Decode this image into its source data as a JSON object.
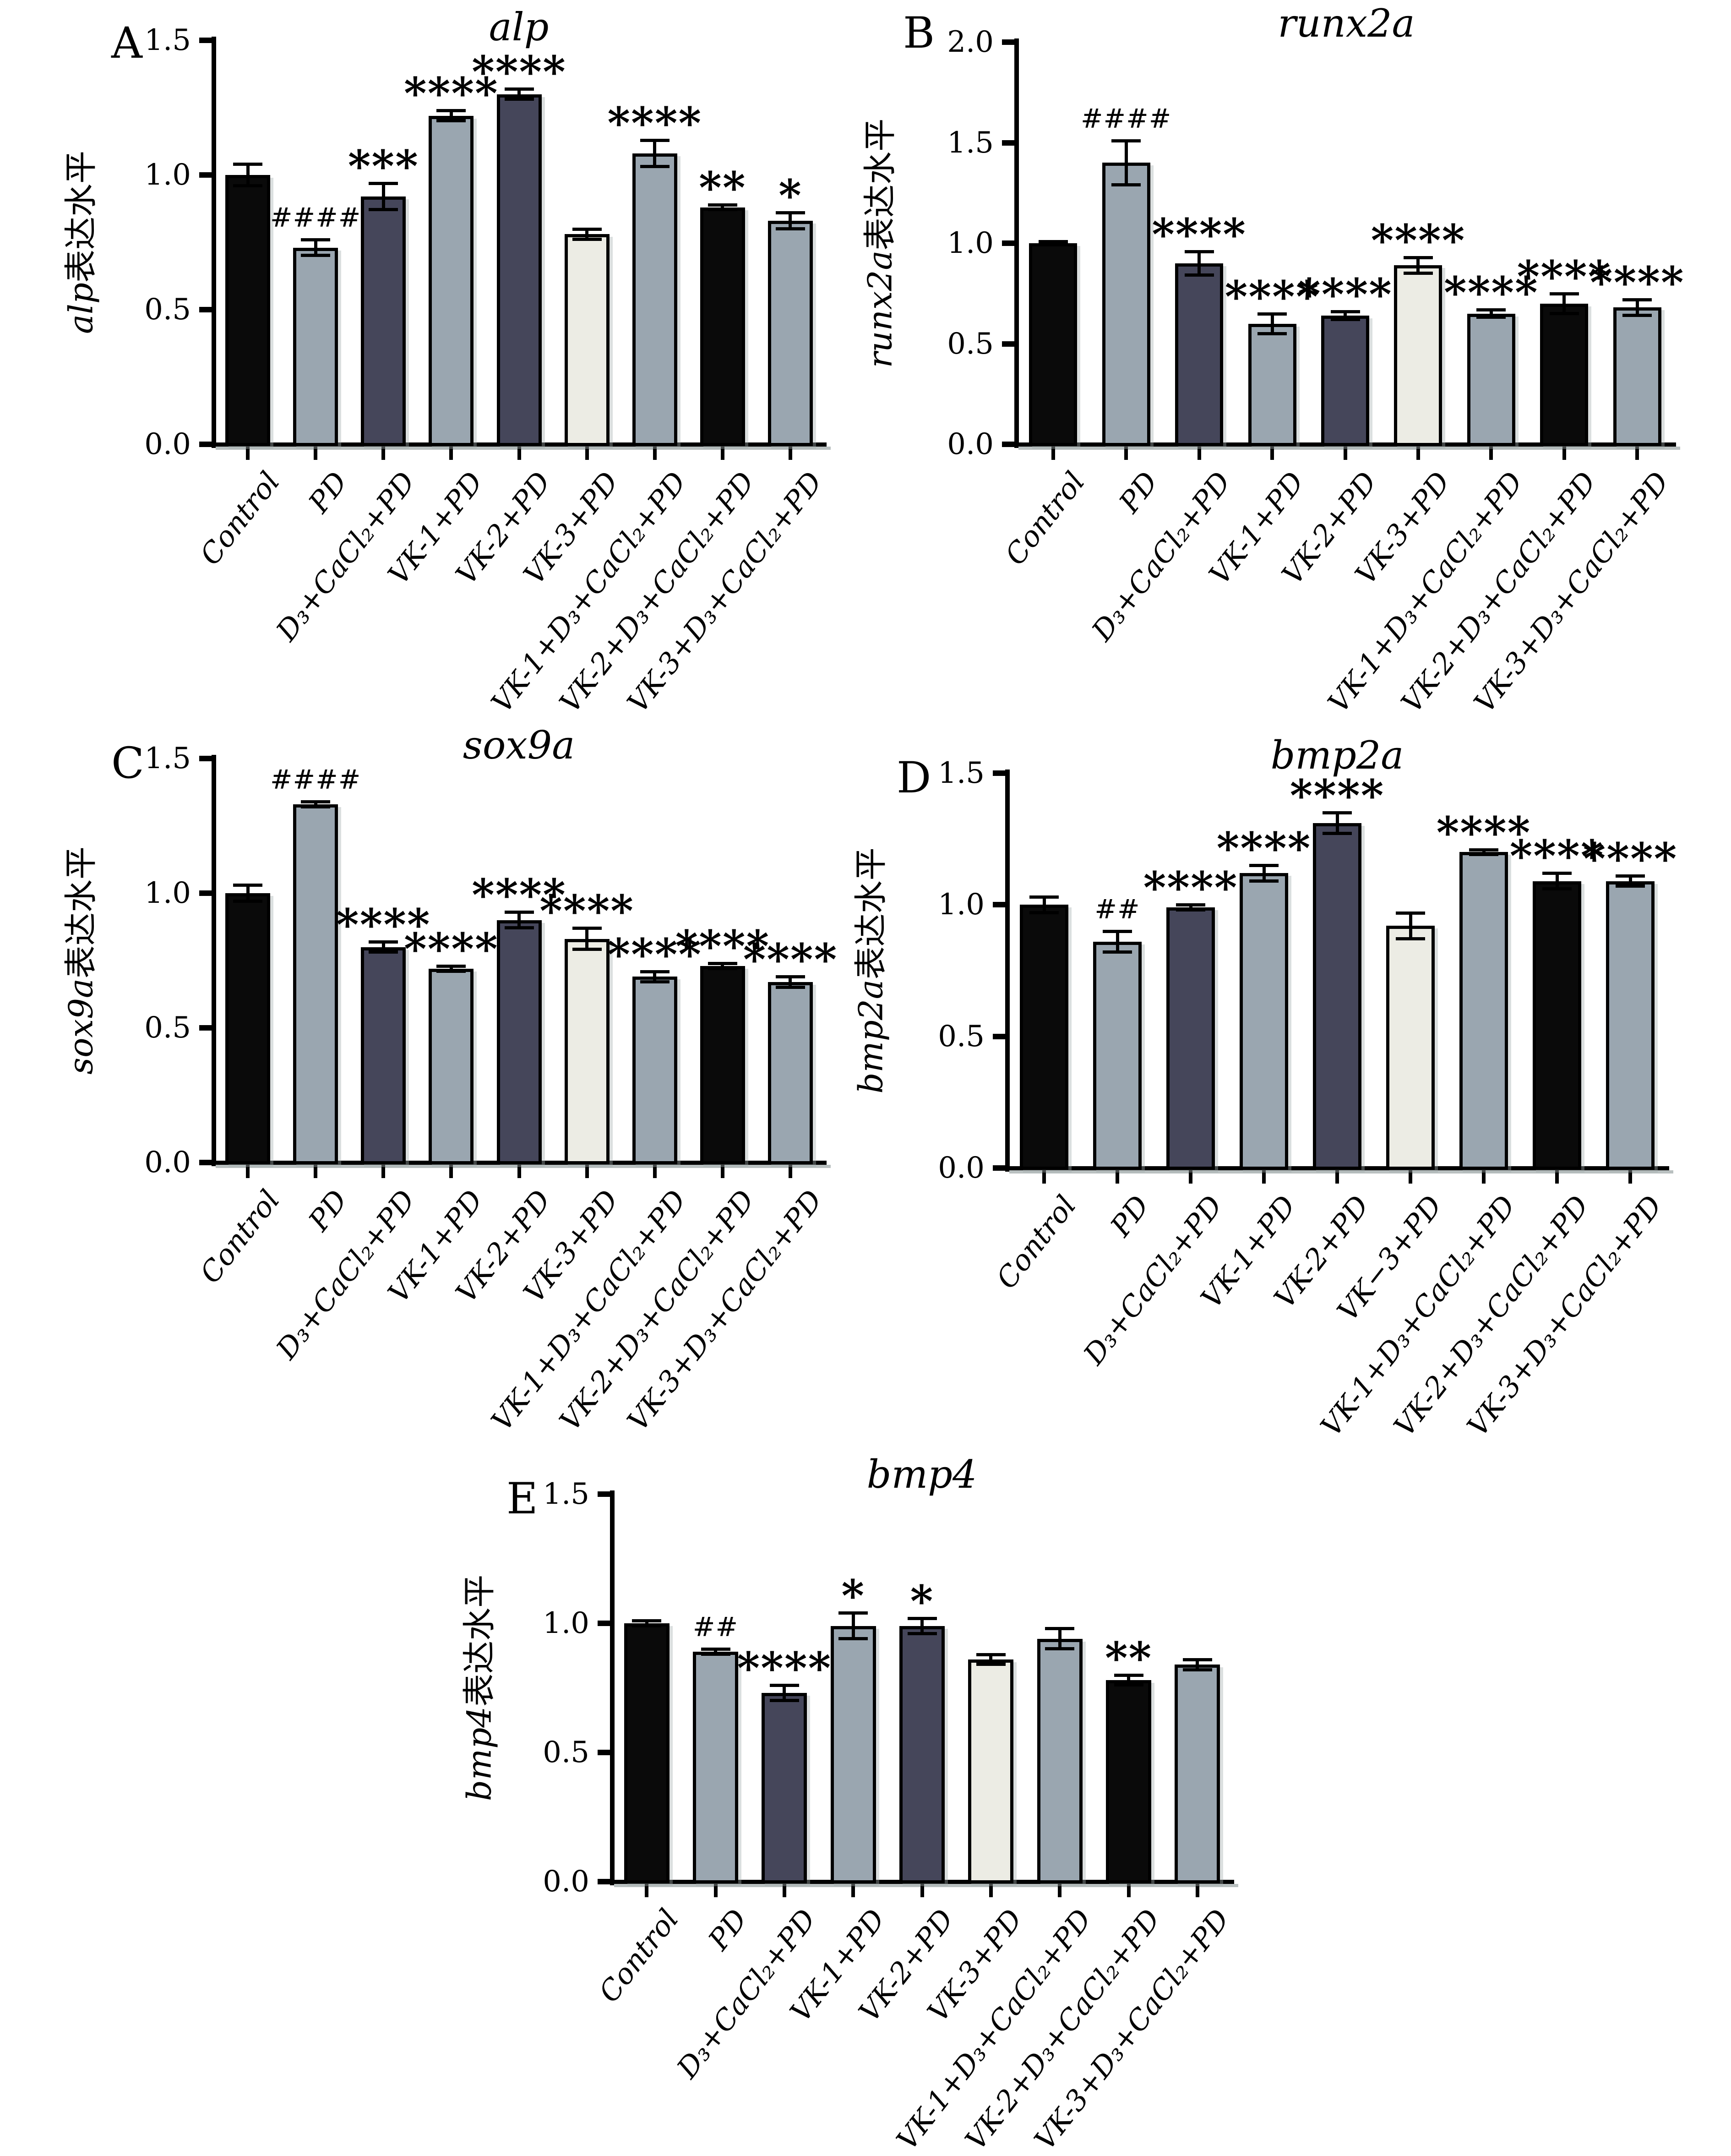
{
  "figure": {
    "background": "#ffffff",
    "colors": {
      "black": "#0a0a0a",
      "gray": "#9aa6b0",
      "slate": "#45465a",
      "cream": "#ecece4",
      "axis": "#000000",
      "axis_shadow": "#b9c0c0"
    },
    "panel_letters": [
      "A",
      "B",
      "C",
      "D",
      "E"
    ]
  },
  "chart_data": [
    {
      "type": "bar",
      "panel": "A",
      "title": "alp",
      "ylabel": "alp表达水平",
      "ylabel_gene": "alp",
      "ylabel_suffix": "表达水平",
      "ylim": [
        0,
        1.5
      ],
      "yticks": [
        0.0,
        0.5,
        1.0,
        1.5
      ],
      "grid": false,
      "legend": "none",
      "categories": [
        "Control",
        "PD",
        "D₃+CaCl₂+PD",
        "VK-1+PD",
        "VK-2+PD",
        "VK-3+PD",
        "VK-1+D₃+CaCl₂+PD",
        "VK-2+D₃+CaCl₂+PD",
        "VK-3+D₃+CaCl₂+PD"
      ],
      "values": [
        1.0,
        0.73,
        0.92,
        1.22,
        1.3,
        0.78,
        1.08,
        0.88,
        0.83
      ],
      "errors": [
        0.04,
        0.03,
        0.05,
        0.02,
        0.02,
        0.02,
        0.05,
        0.01,
        0.03
      ],
      "annotations": [
        "",
        "####",
        "***",
        "****",
        "****",
        "",
        "****",
        "**",
        "*"
      ],
      "bar_color_keys": [
        "black",
        "gray",
        "slate",
        "gray",
        "slate",
        "cream",
        "gray",
        "black",
        "gray"
      ]
    },
    {
      "type": "bar",
      "panel": "B",
      "title": "runx2a",
      "ylabel": "runx2a表达水平",
      "ylabel_gene": "runx2a",
      "ylabel_suffix": "表达水平",
      "ylim": [
        0,
        2.0
      ],
      "yticks": [
        0.0,
        0.5,
        1.0,
        1.5,
        2.0
      ],
      "grid": false,
      "legend": "none",
      "categories": [
        "Control",
        "PD",
        "D₃+CaCl₂+PD",
        "VK-1+PD",
        "VK-2+PD",
        "VK-3+PD",
        "VK-1+D₃+CaCl₂+PD",
        "VK-2+D₃+CaCl₂+PD",
        "VK-3+D₃+CaCl₂+PD"
      ],
      "values": [
        1.0,
        1.4,
        0.9,
        0.6,
        0.64,
        0.89,
        0.65,
        0.7,
        0.68
      ],
      "errors": [
        0.01,
        0.11,
        0.06,
        0.05,
        0.02,
        0.04,
        0.02,
        0.05,
        0.04
      ],
      "annotations": [
        "",
        "####",
        "****",
        "****",
        "****",
        "****",
        "****",
        "****",
        "****"
      ],
      "bar_color_keys": [
        "black",
        "gray",
        "slate",
        "gray",
        "slate",
        "cream",
        "gray",
        "black",
        "gray"
      ]
    },
    {
      "type": "bar",
      "panel": "C",
      "title": "sox9a",
      "ylabel": "sox9a表达水平",
      "ylabel_gene": "sox9a",
      "ylabel_suffix": "表达水平",
      "ylim": [
        0,
        1.5
      ],
      "yticks": [
        0.0,
        0.5,
        1.0,
        1.5
      ],
      "grid": false,
      "legend": "none",
      "categories": [
        "Control",
        "PD",
        "D₃+CaCl₂+PD",
        "VK-1+PD",
        "VK-2+PD",
        "VK-3+PD",
        "VK-1+D₃+CaCl₂+PD",
        "VK-2+D₃+CaCl₂+PD",
        "VK-3+D₃+CaCl₂+PD"
      ],
      "values": [
        1.0,
        1.33,
        0.8,
        0.72,
        0.9,
        0.83,
        0.69,
        0.73,
        0.67
      ],
      "errors": [
        0.03,
        0.01,
        0.02,
        0.01,
        0.03,
        0.04,
        0.02,
        0.01,
        0.02
      ],
      "annotations": [
        "",
        "####",
        "****",
        "****",
        "****",
        "****",
        "****",
        "****",
        "****"
      ],
      "bar_color_keys": [
        "black",
        "gray",
        "slate",
        "gray",
        "slate",
        "cream",
        "gray",
        "black",
        "gray"
      ]
    },
    {
      "type": "bar",
      "panel": "D",
      "title": "bmp2a",
      "ylabel": "bmp2a表达水平",
      "ylabel_gene": "bmp2a",
      "ylabel_suffix": "表达水平",
      "ylim": [
        0,
        1.5
      ],
      "yticks": [
        0.0,
        0.5,
        1.0,
        1.5
      ],
      "grid": false,
      "legend": "none",
      "categories": [
        "Control",
        "PD",
        "D₃+CaCl₂+PD",
        "VK-1+PD",
        "VK-2+PD",
        "VK−3+PD",
        "VK-1+D₃+CaCl₂+PD",
        "VK-2+D₃+CaCl₂+PD",
        "VK-3+D₃+CaCl₂+PD"
      ],
      "values": [
        1.0,
        0.86,
        0.99,
        1.12,
        1.31,
        0.92,
        1.2,
        1.09,
        1.09
      ],
      "errors": [
        0.03,
        0.04,
        0.01,
        0.03,
        0.04,
        0.05,
        0.01,
        0.03,
        0.02
      ],
      "annotations": [
        "",
        "##",
        "****",
        "****",
        "****",
        "",
        "****",
        "****",
        "****"
      ],
      "bar_color_keys": [
        "black",
        "gray",
        "slate",
        "gray",
        "slate",
        "cream",
        "gray",
        "black",
        "gray"
      ]
    },
    {
      "type": "bar",
      "panel": "E",
      "title": "bmp4",
      "ylabel": "bmp4表达水平",
      "ylabel_gene": "bmp4",
      "ylabel_suffix": "表达水平",
      "ylim": [
        0,
        1.5
      ],
      "yticks": [
        0.0,
        0.5,
        1.0,
        1.5
      ],
      "grid": false,
      "legend": "none",
      "categories": [
        "Control",
        "PD",
        "D₃+CaCl₂+PD",
        "VK-1+PD",
        "VK-2+PD",
        "VK-3+PD",
        "VK-1+D₃+CaCl₂+PD",
        "VK-2+D₃+CaCl₂+PD",
        "VK-3+D₃+CaCl₂+PD"
      ],
      "values": [
        1.0,
        0.89,
        0.73,
        0.99,
        0.99,
        0.86,
        0.94,
        0.78,
        0.84
      ],
      "errors": [
        0.01,
        0.01,
        0.03,
        0.05,
        0.03,
        0.02,
        0.04,
        0.02,
        0.02
      ],
      "annotations": [
        "",
        "##",
        "****",
        "*",
        "*",
        "",
        "",
        "**",
        ""
      ],
      "bar_color_keys": [
        "black",
        "gray",
        "slate",
        "gray",
        "slate",
        "cream",
        "gray",
        "black",
        "gray"
      ]
    }
  ]
}
